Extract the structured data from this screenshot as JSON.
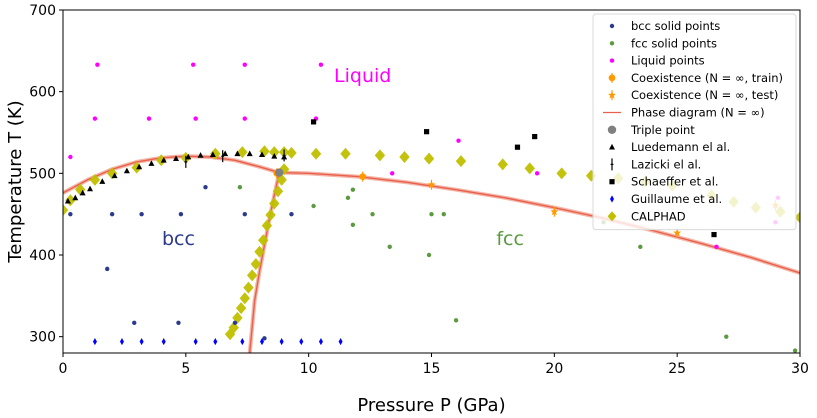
{
  "chart_data": {
    "type": "scatter",
    "xlabel": "Pressure P (GPa)",
    "ylabel": "Temperature T (K)",
    "xlim": [
      0,
      30
    ],
    "ylim": [
      280,
      700
    ],
    "xticks": [
      "0",
      "5",
      "10",
      "15",
      "20",
      "25",
      "30"
    ],
    "yticks": [
      "300",
      "400",
      "500",
      "600",
      "700"
    ],
    "grid": false,
    "legend_position": "top-right",
    "region_labels": [
      {
        "text": "Liquid",
        "x": 12.2,
        "y": 612,
        "color": "#ff00ff"
      },
      {
        "text": "bcc",
        "x": 4.7,
        "y": 412,
        "color": "#2b3a8c"
      },
      {
        "text": "fcc",
        "x": 18.2,
        "y": 412,
        "color": "#5b9a40"
      }
    ],
    "legend": [
      {
        "label": "bcc solid points",
        "marker": "dot",
        "color": "#2b3a8c"
      },
      {
        "label": "fcc solid points",
        "marker": "dot",
        "color": "#5b9a40"
      },
      {
        "label": "Liquid points",
        "marker": "dot",
        "color": "#ff00ff"
      },
      {
        "label": "Coexistence (N = ∞, train)",
        "marker": "errordot",
        "color": "#ff9900"
      },
      {
        "label": "Coexistence (N = ∞, test)",
        "marker": "errorstar",
        "color": "#ff9900"
      },
      {
        "label": "Phase diagram (N = ∞)",
        "marker": "line",
        "color": "#e8604c"
      },
      {
        "label": "Triple point",
        "marker": "bigdot",
        "color": "#808080"
      },
      {
        "label": "Luedemann el al.",
        "marker": "triangle",
        "color": "#000000"
      },
      {
        "label": "Lazicki el al.",
        "marker": "errorbar",
        "color": "#000000"
      },
      {
        "label": "Schaeffer et al.",
        "marker": "square",
        "color": "#000000"
      },
      {
        "label": "Guillaume et al.",
        "marker": "thin-diamond",
        "color": "#0000ff"
      },
      {
        "label": "CALPHAD",
        "marker": "diamond",
        "color": "#c0c000"
      }
    ],
    "series": [
      {
        "name": "bcc solid points",
        "color": "#2b3a8c",
        "marker": "dot",
        "x": [
          0.3,
          1.8,
          2.0,
          3.2,
          4.8,
          2.9,
          4.7,
          5.8,
          7.4,
          9.3,
          7.0,
          8.2
        ],
        "y": [
          450,
          383,
          450,
          450,
          450,
          317,
          317,
          483,
          450,
          450,
          317,
          298
        ]
      },
      {
        "name": "fcc solid points",
        "color": "#5b9a40",
        "marker": "dot",
        "x": [
          7.2,
          10.2,
          11.6,
          11.8,
          11.8,
          12.6,
          13.3,
          14.9,
          15.0,
          15.5,
          16.0,
          22.0,
          23.5,
          27.0,
          29.8
        ],
        "y": [
          483,
          460,
          470,
          480,
          437,
          450,
          410,
          400,
          450,
          450,
          320,
          440,
          410,
          300,
          283
        ]
      },
      {
        "name": "Liquid points",
        "color": "#ff00ff",
        "marker": "dot",
        "x": [
          0.3,
          1.3,
          1.4,
          3.5,
          5.3,
          5.4,
          7.4,
          7.4,
          10.3,
          10.5,
          13.4,
          16.1,
          19.3,
          26.6,
          29.0,
          29.1
        ],
        "y": [
          520,
          567,
          633,
          567,
          633,
          567,
          567,
          633,
          567,
          633,
          500,
          540,
          500,
          410,
          440,
          470
        ]
      },
      {
        "name": "Coexistence (N = ∞, train)",
        "color": "#ff9900",
        "marker": "errordot",
        "x": [
          8.7,
          12.2
        ],
        "y": [
          500,
          496
        ],
        "err": [
          4,
          4
        ]
      },
      {
        "name": "Coexistence (N = ∞, test)",
        "color": "#ff9900",
        "marker": "errorstar",
        "x": [
          15.0,
          20.0,
          25.0,
          29.0
        ],
        "y": [
          486,
          453,
          427,
          461
        ],
        "err": [
          4,
          4,
          4,
          4
        ]
      },
      {
        "name": "Triple point",
        "color": "#808080",
        "marker": "bigdot",
        "x": [
          8.8
        ],
        "y": [
          501
        ]
      },
      {
        "name": "Luedemann el al.",
        "color": "#000000",
        "marker": "triangle",
        "x": [
          0.2,
          0.5,
          0.8,
          1.1,
          1.6,
          2.1,
          2.6,
          3.1,
          3.6,
          4.1,
          4.6,
          5.1,
          5.6,
          6.1,
          6.6,
          7.1,
          7.6,
          8.1,
          8.6,
          9.0
        ],
        "y": [
          466,
          470,
          476,
          481,
          490,
          497,
          503,
          508,
          512,
          516,
          518,
          520,
          522,
          523,
          524,
          524,
          524,
          523,
          521,
          520
        ]
      },
      {
        "name": "Lazicki el al.",
        "color": "#000000",
        "marker": "errorbar",
        "x": [
          5.0,
          6.5,
          9.0
        ],
        "y": [
          514,
          521,
          522
        ]
      },
      {
        "name": "Schaeffer et al.",
        "color": "#000000",
        "marker": "square",
        "x": [
          10.2,
          14.8,
          18.5,
          19.2,
          26.5
        ],
        "y": [
          563,
          551,
          532,
          545,
          425
        ]
      },
      {
        "name": "Guillaume et al.",
        "color": "#0000ff",
        "marker": "thin-diamond",
        "x": [
          1.3,
          2.4,
          3.2,
          4.1,
          5.4,
          6.2,
          7.3,
          8.1,
          8.9,
          9.7,
          10.5,
          11.3
        ],
        "y": [
          294,
          294,
          294,
          294,
          294,
          294,
          294,
          294,
          294,
          294,
          294,
          294
        ]
      },
      {
        "name": "CALPHAD",
        "color": "#c0c000",
        "marker": "diamond",
        "x": [
          0.0,
          0.3,
          0.7,
          1.3,
          2.0,
          3.0,
          4.0,
          5.0,
          6.2,
          7.3,
          8.2,
          8.6,
          9.0,
          9.3,
          10.3,
          11.5,
          12.9,
          13.9,
          14.9,
          16.2,
          17.9,
          19.0,
          20.3,
          21.5,
          22.6,
          23.7,
          24.8,
          26.4,
          27.3,
          28.2,
          29.2,
          30.0,
          9.0,
          8.9,
          8.75,
          8.6,
          8.45,
          8.3,
          8.15,
          8.0,
          7.85,
          7.7,
          7.55,
          7.4,
          7.25,
          7.1,
          6.95,
          6.8
        ],
        "y": [
          455,
          467,
          480,
          492,
          500,
          507,
          516,
          519,
          524,
          526,
          527,
          526,
          526,
          525,
          524,
          524,
          522,
          520,
          518,
          515,
          511,
          506,
          500,
          497,
          494,
          490,
          485,
          473,
          465,
          458,
          453,
          446,
          505,
          492,
          478,
          463,
          449,
          436,
          418,
          404,
          389,
          375,
          360,
          347,
          335,
          323,
          311,
          303
        ]
      }
    ],
    "phase_diagram": {
      "name": "Phase diagram (N = ∞)",
      "color": "#e8604c",
      "segments": [
        {
          "x": [
            0.0,
            1.0,
            2.0,
            3.0,
            4.0,
            5.0,
            6.0,
            7.0,
            8.0,
            8.8
          ],
          "y": [
            476,
            492,
            505,
            514,
            519,
            521,
            520,
            516,
            508,
            501
          ]
        },
        {
          "x": [
            8.8,
            10,
            12,
            14,
            16,
            18,
            20,
            22,
            24,
            26,
            28,
            30
          ],
          "y": [
            501,
            500,
            496,
            489,
            480,
            470,
            458,
            445,
            430,
            414,
            397,
            378
          ]
        },
        {
          "x": [
            8.8,
            8.6,
            8.4,
            8.2,
            8.0,
            7.8,
            7.6
          ],
          "y": [
            501,
            473,
            444,
            412,
            380,
            344,
            280
          ]
        }
      ]
    }
  }
}
